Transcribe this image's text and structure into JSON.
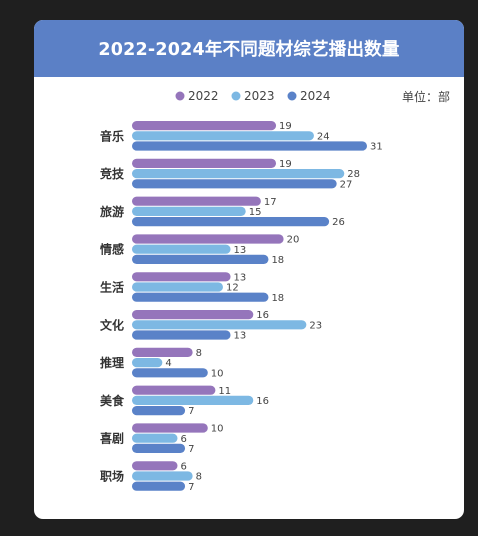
{
  "colors": {
    "background": "#1f1f1f",
    "card": "#ffffff",
    "header": "#5b80c6",
    "s2022": "#9575bb",
    "s2023": "#7db8e3",
    "s2024": "#5a82c8"
  },
  "header": {
    "title": "2022-2024年不同题材综艺播出数量"
  },
  "unit_label": "单位：部",
  "chart_data": {
    "type": "bar",
    "orientation": "horizontal",
    "title": "2022-2024年不同题材综艺播出数量",
    "categories": [
      "音乐",
      "竞技",
      "旅游",
      "情感",
      "生活",
      "文化",
      "推理",
      "美食",
      "喜剧",
      "职场"
    ],
    "series": [
      {
        "name": "2022",
        "color": "#9575bb",
        "values": [
          19,
          19,
          17,
          20,
          13,
          16,
          8,
          11,
          10,
          6
        ]
      },
      {
        "name": "2023",
        "color": "#7db8e3",
        "values": [
          24,
          28,
          15,
          13,
          12,
          23,
          4,
          16,
          6,
          8
        ]
      },
      {
        "name": "2024",
        "color": "#5a82c8",
        "values": [
          31,
          27,
          26,
          18,
          18,
          13,
          10,
          7,
          7,
          7
        ]
      }
    ],
    "xlim": [
      0,
      31
    ],
    "legend_position": "top",
    "grid": false,
    "unit": "单位：部"
  }
}
